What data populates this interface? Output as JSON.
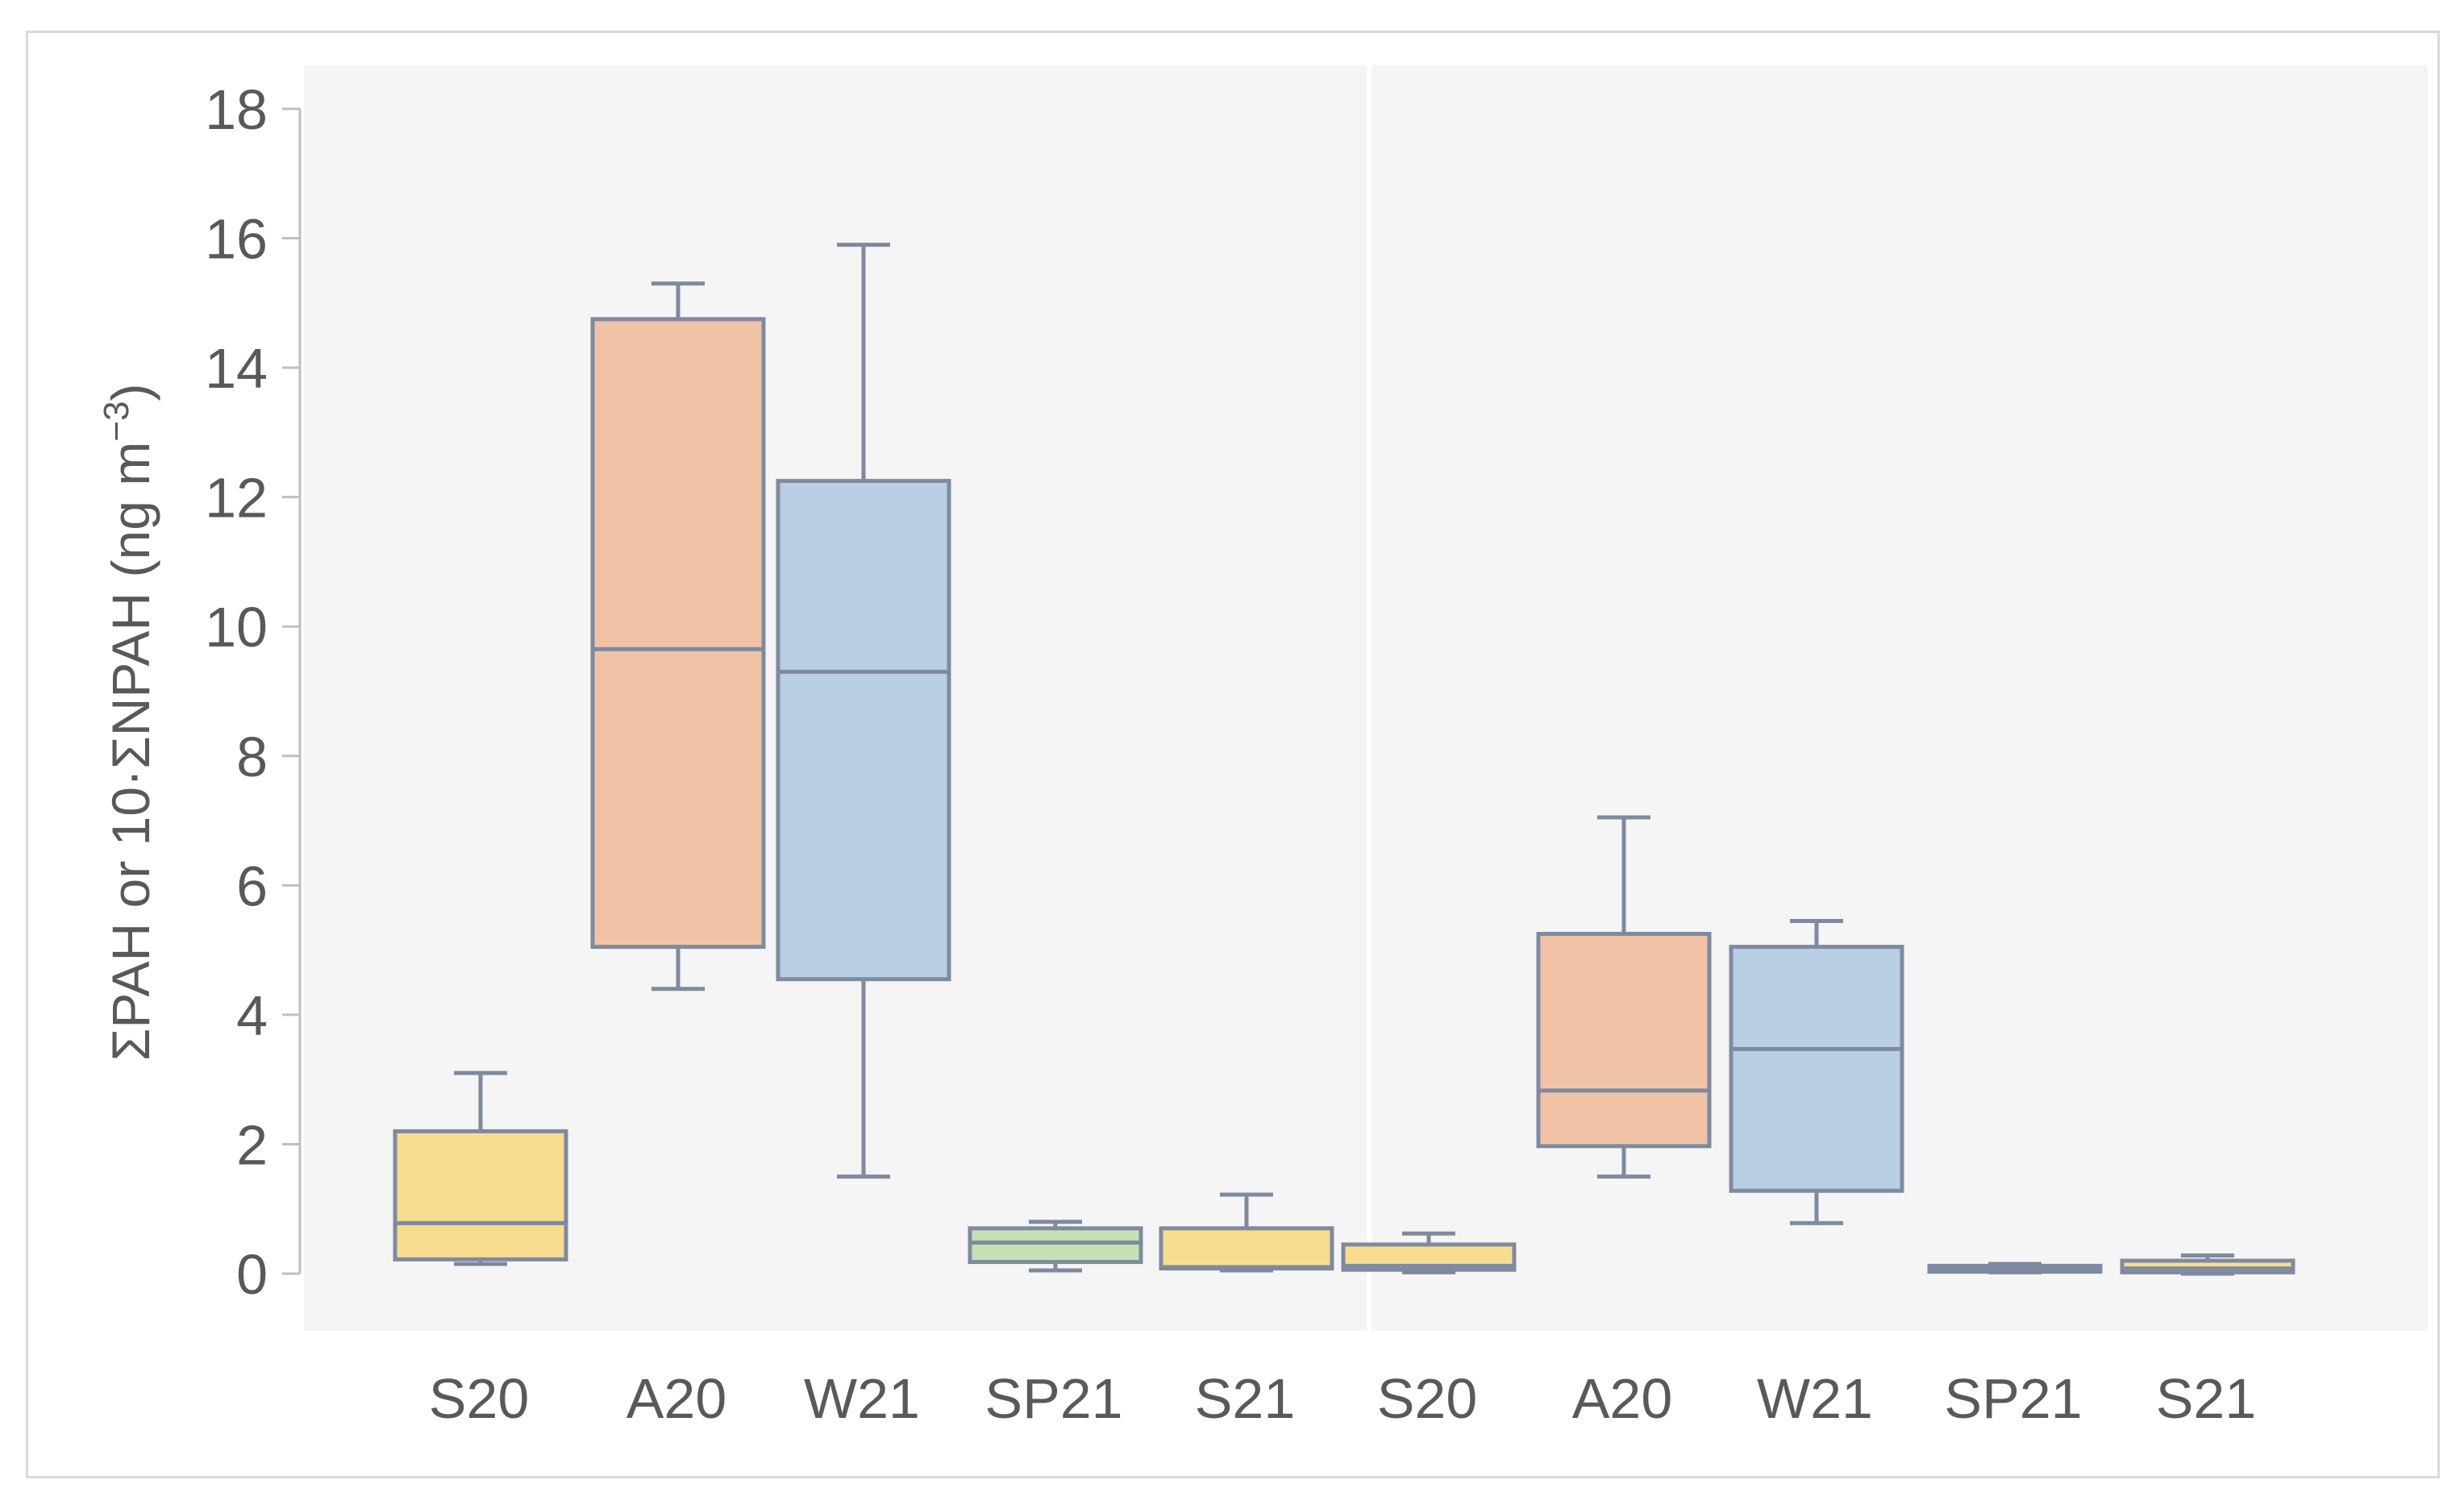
{
  "chart_data": {
    "type": "boxplot",
    "title": "",
    "xlabel": "",
    "ylabel": {
      "main": "ΣPAH or 10·ΣNPAH (ng m",
      "superscript": "−3",
      "close": ")"
    },
    "ylim": [
      0,
      18
    ],
    "yticks": [
      0,
      2,
      4,
      6,
      8,
      10,
      12,
      14,
      16,
      18
    ],
    "grid": false,
    "legend": "none",
    "panels": [
      {
        "name": "ΣPAH",
        "category_range": [
          0,
          4
        ]
      },
      {
        "name": "10·ΣNPAH",
        "category_range": [
          5,
          9
        ]
      }
    ],
    "categories": [
      "S20",
      "A20",
      "W21",
      "SP21",
      "S21",
      "S20",
      "A20",
      "W21",
      "SP21",
      "S21"
    ],
    "boxes": [
      {
        "label": "S20",
        "whisker_low": 0.15,
        "q1": 0.22,
        "median": 0.78,
        "q3": 2.2,
        "whisker_high": 3.1,
        "color": "#f7dc90"
      },
      {
        "label": "A20",
        "whisker_low": 4.4,
        "q1": 5.05,
        "median": 9.65,
        "q3": 14.75,
        "whisker_high": 15.3,
        "color": "#f0c3a6"
      },
      {
        "label": "W21",
        "whisker_low": 1.5,
        "q1": 4.55,
        "median": 9.3,
        "q3": 12.25,
        "whisker_high": 15.9,
        "color": "#b8cfe6"
      },
      {
        "label": "SP21",
        "whisker_low": 0.05,
        "q1": 0.18,
        "median": 0.48,
        "q3": 0.7,
        "whisker_high": 0.8,
        "color": "#c5e0b4"
      },
      {
        "label": "S21",
        "whisker_low": 0.05,
        "q1": 0.08,
        "median": 0.1,
        "q3": 0.7,
        "whisker_high": 1.22,
        "color": "#f7dc90"
      },
      {
        "label": "S20",
        "whisker_low": 0.02,
        "q1": 0.06,
        "median": 0.12,
        "q3": 0.45,
        "whisker_high": 0.62,
        "color": "#f7dc90"
      },
      {
        "label": "A20",
        "whisker_low": 1.5,
        "q1": 1.97,
        "median": 2.83,
        "q3": 5.25,
        "whisker_high": 7.05,
        "color": "#f0c3a6"
      },
      {
        "label": "W21",
        "whisker_low": 0.78,
        "q1": 1.28,
        "median": 3.47,
        "q3": 5.05,
        "whisker_high": 5.45,
        "color": "#b8cfe6"
      },
      {
        "label": "SP21",
        "whisker_low": 0.02,
        "q1": 0.03,
        "median": 0.06,
        "q3": 0.12,
        "whisker_high": 0.15,
        "color": "#b8cfe6"
      },
      {
        "label": "S21",
        "whisker_low": 0.0,
        "q1": 0.02,
        "median": 0.08,
        "q3": 0.2,
        "whisker_high": 0.28,
        "color": "#f7dc90"
      }
    ],
    "colors": {
      "box_stroke": "#7f8aa0",
      "axis": "#bfbfbf",
      "plot_background": "#f5f5f5",
      "text": "#595959"
    }
  }
}
